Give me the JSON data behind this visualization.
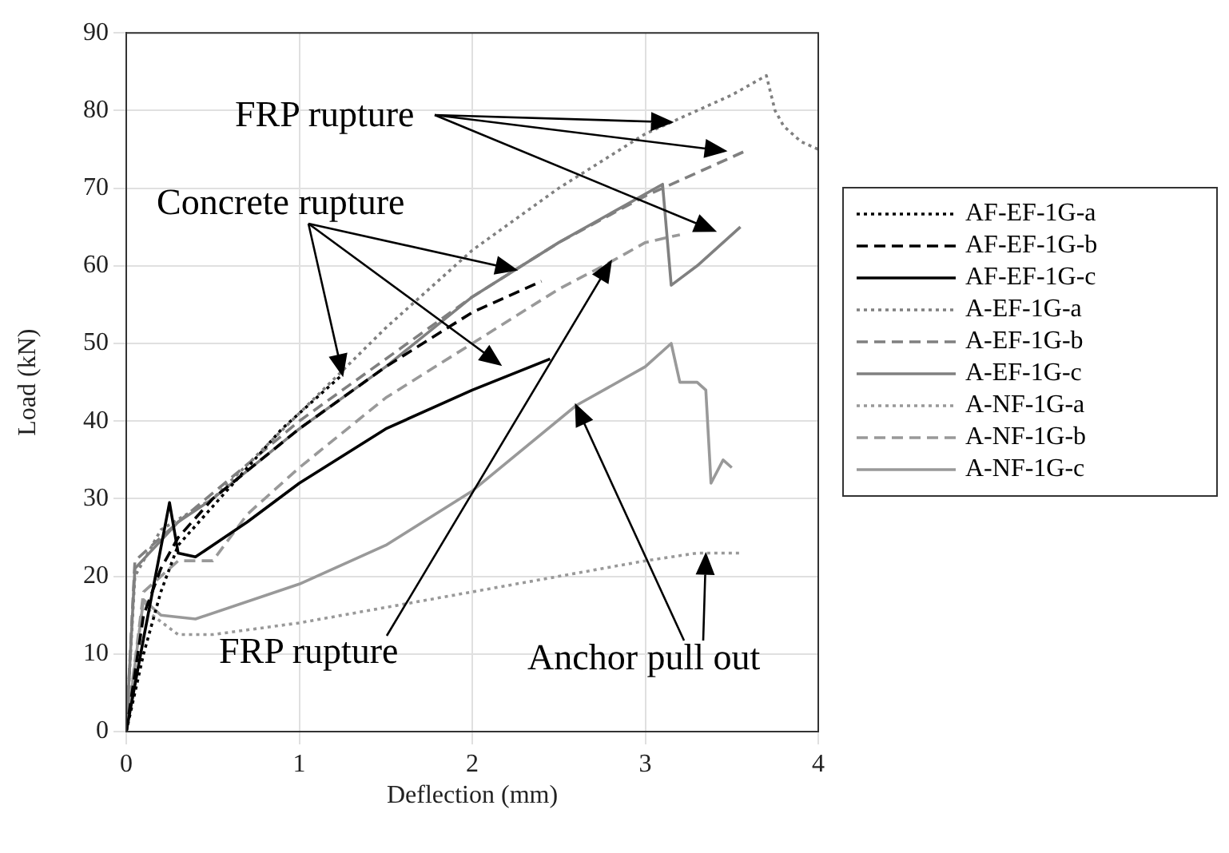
{
  "chart_data": {
    "type": "line",
    "xlabel": "Deflection (mm)",
    "ylabel": "Load (kN)",
    "xlim": [
      0,
      4
    ],
    "xticks": [
      0,
      1,
      2,
      3,
      4
    ],
    "ylim": [
      0,
      90
    ],
    "yticks": [
      0,
      10,
      20,
      30,
      40,
      50,
      60,
      70,
      80,
      90
    ],
    "grid": true,
    "legend": "right",
    "marker": "none",
    "annotations": [
      {
        "text": "FRP rupture",
        "x": 3.15,
        "y": 78.5
      },
      {
        "text": "Concrete rupture",
        "x": 1.25,
        "y": 46
      },
      {
        "text": "FRP rupture",
        "x": 2.8,
        "y": 60.5
      },
      {
        "text": "Anchor pull out",
        "x": 2.6,
        "y": 42
      }
    ],
    "series": [
      {
        "name": "AF-EF-1G-a",
        "color": "#000000",
        "line_style": "dotted",
        "x": [
          0,
          0.1,
          0.2,
          0.3,
          0.5,
          0.7,
          0.9,
          1.1,
          1.25
        ],
        "values": [
          0,
          10,
          18,
          24,
          29,
          34,
          39,
          43,
          46
        ]
      },
      {
        "name": "AF-EF-1G-b",
        "color": "#000000",
        "line_style": "dashed",
        "x": [
          0,
          0.1,
          0.2,
          0.3,
          0.5,
          1,
          1.5,
          2,
          2.4
        ],
        "values": [
          0,
          15,
          21,
          25,
          30,
          39,
          47,
          54,
          58
        ]
      },
      {
        "name": "AF-EF-1G-c",
        "color": "#000000",
        "line_style": "solid",
        "x": [
          0,
          0.1,
          0.25,
          0.3,
          0.4,
          0.5,
          0.7,
          1,
          1.5,
          2,
          2.45
        ],
        "values": [
          0,
          12,
          29.5,
          23,
          22.5,
          24,
          27,
          32,
          39,
          44,
          48
        ]
      },
      {
        "name": "A-EF-1G-a",
        "color": "#808080",
        "line_style": "dotted",
        "x": [
          0,
          0.05,
          0.2,
          0.5,
          1,
          1.5,
          2,
          2.5,
          3,
          3.15,
          3.5,
          3.7,
          3.75,
          3.8,
          3.9,
          4
        ],
        "values": [
          0,
          20,
          26,
          30,
          41,
          52,
          62,
          70,
          77,
          78.5,
          82,
          84.5,
          80,
          78,
          76,
          75
        ]
      },
      {
        "name": "A-EF-1G-b",
        "color": "#808080",
        "line_style": "dashed",
        "x": [
          0,
          0.05,
          0.3,
          1,
          1.5,
          2,
          2.5,
          3,
          3.5,
          3.6
        ],
        "values": [
          0,
          22,
          27,
          40,
          48,
          56,
          63,
          69,
          74,
          75
        ]
      },
      {
        "name": "A-EF-1G-c",
        "color": "#808080",
        "line_style": "solid",
        "x": [
          0,
          0.05,
          0.3,
          0.5,
          1,
          1.5,
          2,
          2.5,
          3.1,
          3.15,
          3.3,
          3.55
        ],
        "values": [
          0,
          21,
          27,
          30,
          39,
          47,
          56,
          63,
          70.5,
          57.5,
          60,
          65
        ]
      },
      {
        "name": "A-NF-1G-a",
        "color": "#999999",
        "line_style": "dotted",
        "x": [
          0,
          0.1,
          0.15,
          0.3,
          0.5,
          1,
          1.5,
          2,
          2.5,
          3,
          3.3,
          3.55
        ],
        "values": [
          0,
          17,
          15,
          12.5,
          12.5,
          14,
          16,
          18,
          20,
          22,
          23,
          23
        ]
      },
      {
        "name": "A-NF-1G-b",
        "color": "#999999",
        "line_style": "dashed",
        "x": [
          0,
          0.1,
          0.3,
          0.5,
          0.7,
          1,
          1.5,
          2,
          2.5,
          2.8,
          3,
          3.2
        ],
        "values": [
          0,
          18,
          22,
          22,
          28,
          34,
          43,
          50,
          57,
          60.5,
          63,
          64
        ]
      },
      {
        "name": "A-NF-1G-c",
        "color": "#999999",
        "line_style": "solid",
        "x": [
          0,
          0.1,
          0.2,
          0.4,
          1,
          1.5,
          2,
          2.6,
          3,
          3.15,
          3.2,
          3.3,
          3.35,
          3.38,
          3.45,
          3.5
        ],
        "values": [
          0,
          17,
          15,
          14.5,
          19,
          24,
          31,
          42,
          47,
          50,
          45,
          45,
          44,
          32,
          35,
          34
        ]
      }
    ]
  }
}
